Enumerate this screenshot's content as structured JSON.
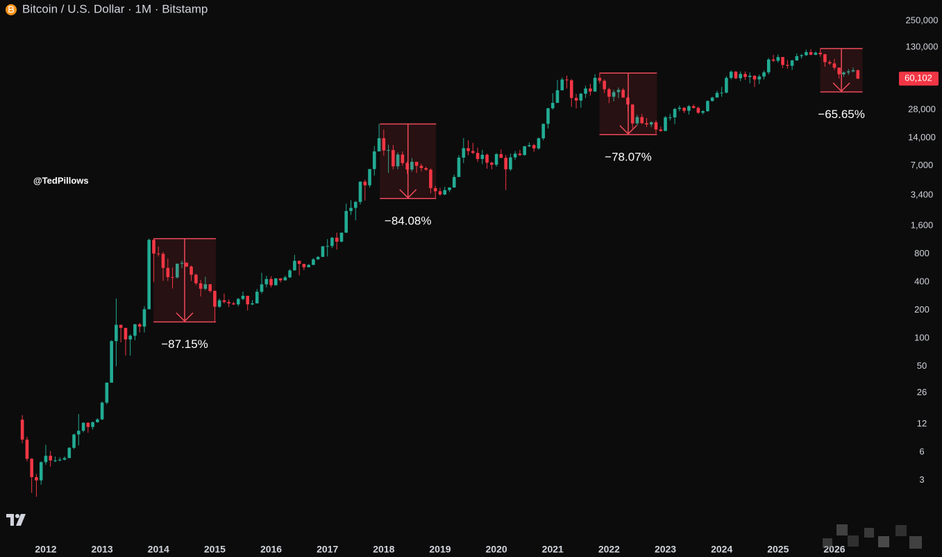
{
  "chart_data": {
    "type": "candlestick",
    "title": "Bitcoin / U.S. Dollar · 1M · Bitstamp",
    "watermark": "@TedPillows",
    "up_color": "#22ab94",
    "down_color": "#f23645",
    "log_scale": true,
    "xlim": [
      2011.187,
      2027.085
    ],
    "xticks": [
      2012,
      2013,
      2014,
      2015,
      2016,
      2017,
      2018,
      2019,
      2020,
      2021,
      2022,
      2023,
      2024,
      2025,
      2026
    ],
    "ylim": [
      0.72,
      418000
    ],
    "yticks": [
      3,
      6,
      12,
      26,
      50,
      100,
      200,
      400,
      800,
      {
        "value": 1600,
        "label": "1,600"
      },
      {
        "value": 3400,
        "label": "3,400"
      },
      {
        "value": 7000,
        "label": "7,000"
      },
      {
        "value": 14000,
        "label": "14,000"
      },
      {
        "value": 28000,
        "label": "28,000"
      },
      {
        "value": 130000,
        "label": "130,000"
      },
      {
        "value": 250000,
        "label": "250,000"
      }
    ],
    "last_price": {
      "value": 60102,
      "label": "60,102"
    },
    "x": [
      2011.583,
      2011.667,
      2011.75,
      2011.833,
      2011.917,
      2012,
      2012.083,
      2012.167,
      2012.25,
      2012.333,
      2012.417,
      2012.5,
      2012.583,
      2012.667,
      2012.75,
      2012.833,
      2012.917,
      2013,
      2013.083,
      2013.167,
      2013.25,
      2013.333,
      2013.417,
      2013.5,
      2013.583,
      2013.667,
      2013.75,
      2013.833,
      2013.917,
      2014,
      2014.083,
      2014.167,
      2014.25,
      2014.333,
      2014.417,
      2014.5,
      2014.583,
      2014.667,
      2014.75,
      2014.833,
      2014.917,
      2015,
      2015.083,
      2015.167,
      2015.25,
      2015.333,
      2015.417,
      2015.5,
      2015.583,
      2015.667,
      2015.75,
      2015.833,
      2015.917,
      2016,
      2016.083,
      2016.167,
      2016.25,
      2016.333,
      2016.417,
      2016.5,
      2016.583,
      2016.667,
      2016.75,
      2016.833,
      2016.917,
      2017,
      2017.083,
      2017.167,
      2017.25,
      2017.333,
      2017.417,
      2017.5,
      2017.583,
      2017.667,
      2017.75,
      2017.833,
      2017.917,
      2018,
      2018.083,
      2018.167,
      2018.25,
      2018.333,
      2018.417,
      2018.5,
      2018.583,
      2018.667,
      2018.75,
      2018.833,
      2018.917,
      2019,
      2019.083,
      2019.167,
      2019.25,
      2019.333,
      2019.417,
      2019.5,
      2019.583,
      2019.667,
      2019.75,
      2019.833,
      2019.917,
      2020,
      2020.083,
      2020.167,
      2020.25,
      2020.333,
      2020.417,
      2020.5,
      2020.583,
      2020.667,
      2020.75,
      2020.833,
      2020.917,
      2021,
      2021.083,
      2021.167,
      2021.25,
      2021.333,
      2021.417,
      2021.5,
      2021.583,
      2021.667,
      2021.75,
      2021.833,
      2021.917,
      2022,
      2022.083,
      2022.167,
      2022.25,
      2022.333,
      2022.417,
      2022.5,
      2022.583,
      2022.667,
      2022.75,
      2022.833,
      2022.917,
      2023,
      2023.083,
      2023.167,
      2023.25,
      2023.333,
      2023.417,
      2023.5,
      2023.583,
      2023.667,
      2023.75,
      2023.833,
      2023.917,
      2024,
      2024.083,
      2024.167,
      2024.25,
      2024.333,
      2024.417,
      2024.5,
      2024.583,
      2024.667,
      2024.75,
      2024.833,
      2024.917,
      2025,
      2025.083,
      2025.167,
      2025.25,
      2025.333,
      2025.417,
      2025.5,
      2025.583,
      2025.667,
      2025.75,
      2025.833,
      2025.917,
      2026,
      2026.083,
      2026.167,
      2026.25,
      2026.333,
      2026.417
    ],
    "open": [
      13.4,
      8.2,
      5.1,
      3.25,
      3.0,
      4.7,
      5.5,
      4.9,
      4.9,
      5.0,
      5.2,
      6.7,
      9.3,
      10.2,
      12.4,
      11.2,
      12.6,
      13.5,
      20.4,
      33.4,
      93,
      139,
      129,
      97,
      106,
      141,
      133,
      204,
      1130,
      805,
      800,
      565,
      450,
      447,
      627,
      640,
      585,
      478,
      387,
      338,
      378,
      320,
      217,
      254,
      244,
      236,
      230,
      263,
      284,
      230,
      236,
      314,
      377,
      430,
      369,
      437,
      416,
      448,
      531,
      673,
      624,
      575,
      609,
      698,
      742,
      963,
      970,
      1190,
      1080,
      1348,
      2300,
      2480,
      2875,
      4735,
      4339,
      6468,
      10000,
      13850,
      10221,
      10326,
      6923,
      9245,
      7495,
      6391,
      7729,
      7011,
      6626,
      6371,
      4041,
      3742,
      3457,
      3854,
      4105,
      5320,
      8574,
      10817,
      10085,
      9630,
      8293,
      9199,
      7569,
      7194,
      9350,
      8543,
      6424,
      8629,
      9455,
      9135,
      11351,
      11655,
      10779,
      13805,
      19713,
      28949,
      33108,
      45137,
      58786,
      57720,
      37300,
      35045,
      41461,
      47130,
      43824,
      61300,
      57005,
      46306,
      38483,
      43160,
      45538,
      37714,
      31792,
      19926,
      23307,
      20050,
      19423,
      20495,
      17168,
      16542,
      23125,
      23150,
      28475,
      29252,
      27220,
      30477,
      29230,
      25941,
      26967,
      34650,
      37725,
      42284,
      42585,
      61199,
      71300,
      60700,
      67500,
      62700,
      64600,
      58970,
      63300,
      70200,
      96400,
      93400,
      102400,
      84300,
      82500,
      94200,
      104600,
      107100,
      115700,
      108300,
      114000,
      109600,
      90400,
      87500,
      78700,
      67000,
      70000,
      72000,
      74000
    ],
    "high": [
      15,
      8.8,
      5.2,
      3.5,
      4.8,
      7.2,
      6.2,
      5.4,
      5.3,
      5.4,
      6.8,
      9.5,
      15.4,
      12.6,
      12.6,
      12.8,
      13.9,
      21,
      33.5,
      95,
      266,
      139,
      129,
      110,
      142,
      145,
      220,
      1163,
      1165,
      960,
      840,
      712,
      570,
      630,
      680,
      655,
      600,
      490,
      420,
      455,
      380,
      325,
      265,
      300,
      260,
      245,
      270,
      315,
      285,
      255,
      335,
      500,
      465,
      460,
      440,
      440,
      467,
      550,
      780,
      680,
      625,
      620,
      720,
      755,
      970,
      1150,
      1210,
      1350,
      1350,
      2760,
      3000,
      2950,
      4800,
      4980,
      6470,
      11400,
      19666,
      17170,
      11800,
      11700,
      9760,
      9990,
      7770,
      8500,
      7760,
      7400,
      6860,
      6570,
      4240,
      4070,
      4190,
      4140,
      5650,
      9090,
      13880,
      13150,
      12340,
      10950,
      10370,
      9510,
      7750,
      9580,
      10500,
      9180,
      9470,
      10070,
      10380,
      11440,
      12480,
      12070,
      14100,
      19880,
      29300,
      42000,
      58400,
      61800,
      64900,
      59600,
      41300,
      42300,
      50500,
      52900,
      67000,
      69000,
      59100,
      47990,
      45800,
      48200,
      47450,
      39900,
      31900,
      24700,
      25200,
      22800,
      21000,
      21480,
      18400,
      23950,
      25250,
      29190,
      31000,
      29820,
      31400,
      31800,
      30200,
      27490,
      35200,
      38450,
      44700,
      48970,
      64000,
      73800,
      72800,
      71950,
      71900,
      70000,
      65100,
      66500,
      73600,
      99800,
      108300,
      109600,
      102800,
      95000,
      95800,
      111900,
      110500,
      123200,
      124500,
      117900,
      126200,
      111000,
      94600,
      97900,
      79300,
      72000,
      76000,
      79000,
      75500
    ],
    "low": [
      7.5,
      4.8,
      2.2,
      2.0,
      2.7,
      4.4,
      4.2,
      4.7,
      4.8,
      4.9,
      5.2,
      6.5,
      7.1,
      9.8,
      9.7,
      10.5,
      12.4,
      13.3,
      19.6,
      33.3,
      50,
      90,
      65,
      65,
      95,
      115,
      115,
      203,
      400,
      750,
      410,
      410,
      340,
      435,
      560,
      575,
      410,
      370,
      280,
      325,
      308,
      152,
      211,
      235,
      215,
      227,
      220,
      255,
      198,
      225,
      235,
      300,
      350,
      350,
      365,
      395,
      415,
      440,
      530,
      470,
      535,
      590,
      605,
      690,
      740,
      750,
      920,
      890,
      1060,
      1340,
      2090,
      1830,
      2700,
      2970,
      4100,
      5500,
      10800,
      9000,
      5870,
      6430,
      6440,
      7040,
      5750,
      6070,
      5880,
      6100,
      6200,
      3560,
      3120,
      3350,
      3390,
      3670,
      4090,
      5330,
      7500,
      9070,
      9340,
      7710,
      7300,
      6520,
      6430,
      6860,
      8450,
      3850,
      6160,
      8120,
      8930,
      9000,
      11100,
      9880,
      10390,
      13200,
      17600,
      28000,
      33000,
      45000,
      47000,
      30000,
      28800,
      29300,
      37300,
      39600,
      43300,
      53300,
      42000,
      32900,
      34300,
      37200,
      37600,
      26700,
      17600,
      18800,
      19600,
      18200,
      18200,
      15476,
      16260,
      16490,
      21400,
      19550,
      26940,
      25800,
      24800,
      28860,
      25200,
      24930,
      26550,
      34100,
      37600,
      38500,
      41900,
      59100,
      59200,
      56550,
      58400,
      53500,
      49100,
      52600,
      58900,
      66800,
      90500,
      89100,
      78200,
      76600,
      74500,
      93400,
      98300,
      105300,
      107300,
      107300,
      103500,
      80600,
      84400,
      74500,
      60000,
      63000,
      66000,
      70000,
      59500
    ],
    "close": [
      8.2,
      5.1,
      3.25,
      3.0,
      4.7,
      5.5,
      4.9,
      4.9,
      5.0,
      5.2,
      6.7,
      9.3,
      10.2,
      12.4,
      11.2,
      12.6,
      13.5,
      20.4,
      33.4,
      93,
      139,
      129,
      97,
      106,
      141,
      133,
      204,
      1130,
      805,
      800,
      565,
      450,
      447,
      627,
      640,
      585,
      478,
      387,
      338,
      378,
      320,
      217,
      254,
      244,
      236,
      230,
      263,
      284,
      230,
      236,
      314,
      377,
      430,
      369,
      437,
      416,
      448,
      531,
      673,
      624,
      575,
      609,
      698,
      742,
      963,
      970,
      1190,
      1080,
      1348,
      2300,
      2480,
      2875,
      4735,
      4339,
      6468,
      10000,
      13850,
      10221,
      10326,
      6923,
      9245,
      7495,
      6391,
      7729,
      7011,
      6626,
      6371,
      4041,
      3742,
      3457,
      3854,
      4105,
      5320,
      8574,
      10817,
      10085,
      9630,
      8293,
      9199,
      7569,
      7194,
      9350,
      8543,
      6424,
      8629,
      9455,
      9135,
      11351,
      11655,
      10779,
      13805,
      19713,
      28949,
      33108,
      45137,
      58786,
      57720,
      37300,
      35045,
      41461,
      47130,
      43824,
      61300,
      57005,
      46306,
      38483,
      43160,
      45538,
      37714,
      31792,
      19926,
      23307,
      20050,
      19423,
      20495,
      17168,
      16542,
      23125,
      23150,
      28475,
      29252,
      27220,
      30477,
      29230,
      25941,
      26967,
      34650,
      37725,
      42284,
      42585,
      61199,
      71300,
      60700,
      67500,
      62700,
      64600,
      58970,
      63300,
      70200,
      96400,
      93400,
      102400,
      84300,
      82500,
      94200,
      104600,
      107100,
      115700,
      108300,
      114000,
      109600,
      90400,
      87500,
      78700,
      67000,
      70000,
      72000,
      74000,
      60102
    ],
    "annotations": [
      {
        "label": "−87.15%",
        "x_start": 2013.91,
        "x_end": 2015.02,
        "top": 1163,
        "bottom": 149.4
      },
      {
        "label": "−84.08%",
        "x_start": 2017.93,
        "x_end": 2018.93,
        "top": 19666,
        "bottom": 3131
      },
      {
        "label": "−78.07%",
        "x_start": 2021.83,
        "x_end": 2022.85,
        "top": 69000,
        "bottom": 15132
      },
      {
        "label": "−65.65%",
        "x_start": 2025.75,
        "x_end": 2026.5,
        "top": 126200,
        "bottom": 43350
      }
    ]
  }
}
